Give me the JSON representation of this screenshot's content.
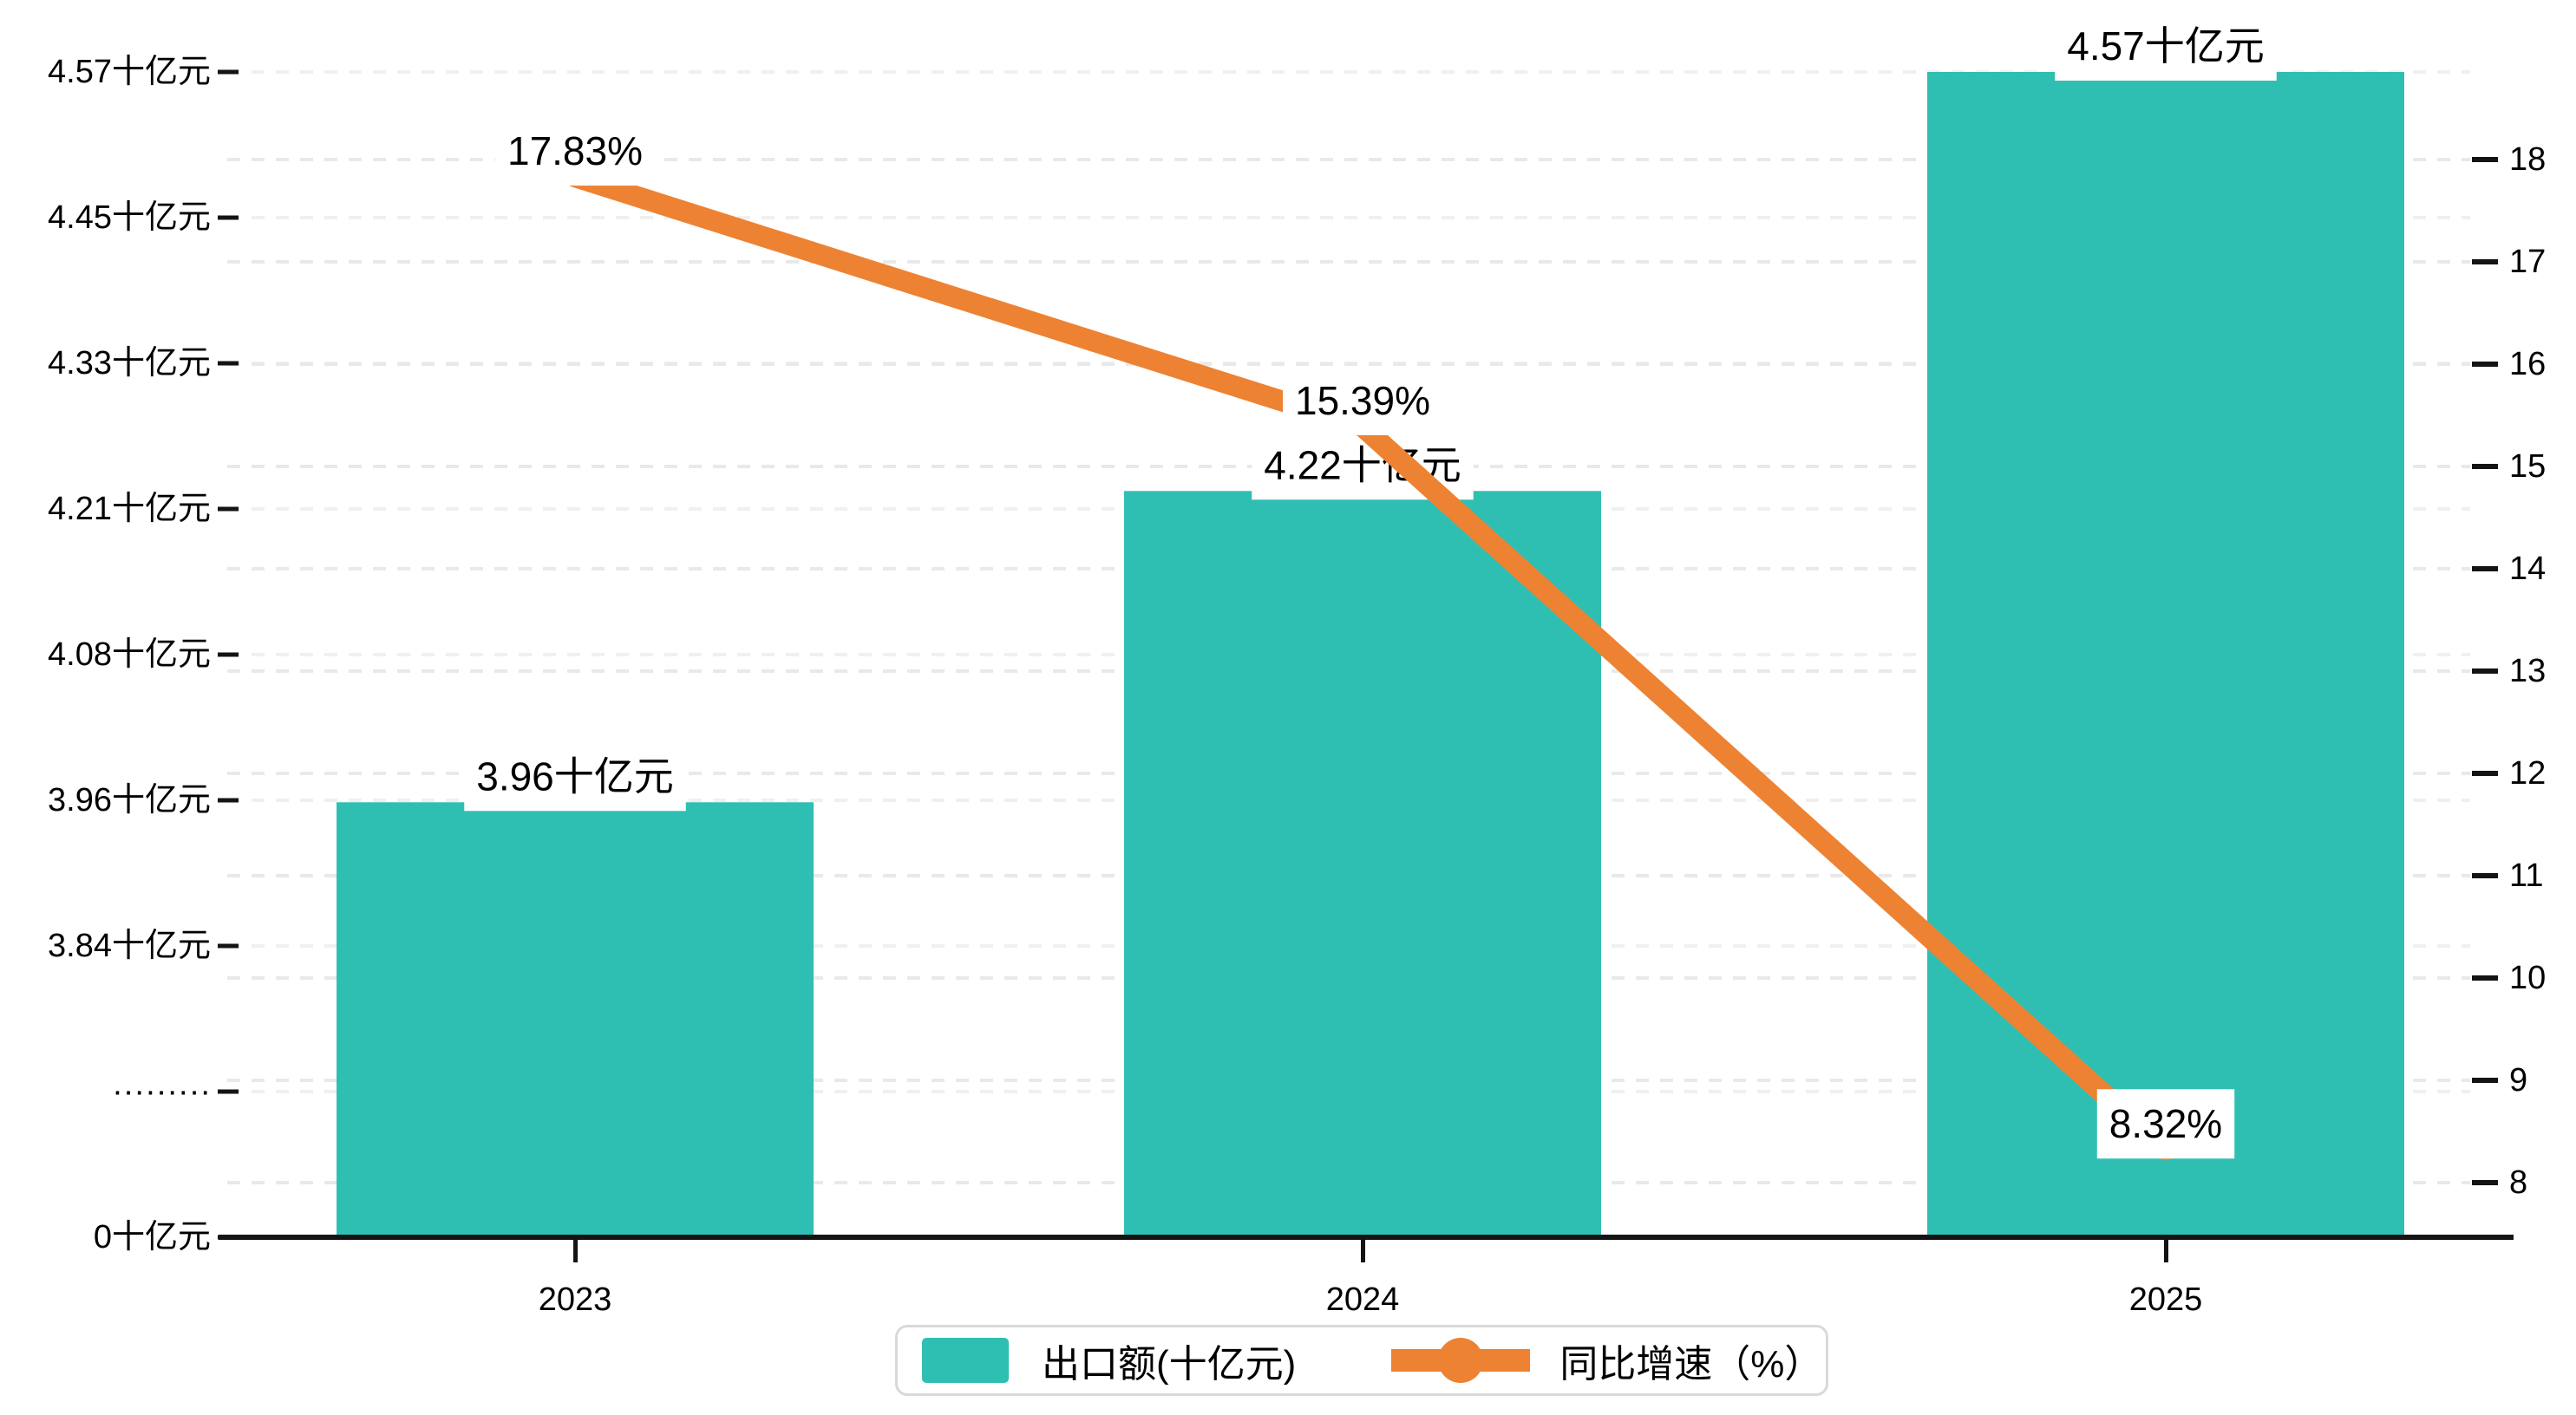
{
  "chart_data": {
    "type": "bar",
    "subtype": "combo-bar-line-dual-axis",
    "categories": [
      "2023",
      "2024",
      "2025"
    ],
    "series": [
      {
        "name": "出口额(十亿元)",
        "type": "bar",
        "values": [
          3.96,
          4.22,
          4.57
        ],
        "labels": [
          "3.96十亿元",
          "4.22十亿元",
          "4.57十亿元"
        ],
        "color": "#2FBFB2",
        "axis": "left"
      },
      {
        "name": "同比增速（%）",
        "type": "line",
        "values": [
          17.83,
          15.39,
          8.32
        ],
        "labels": [
          "17.83%",
          "15.39%",
          "8.32%"
        ],
        "color": "#ED8233",
        "axis": "right"
      }
    ],
    "left_axis": {
      "tick_labels": [
        "4.57十亿元",
        "4.45十亿元",
        "4.33十亿元",
        "4.21十亿元",
        "4.08十亿元",
        "3.96十亿元",
        "3.84十亿元",
        "·········",
        "0十亿元"
      ],
      "tick_values": [
        4.57,
        4.45,
        4.33,
        4.21,
        4.08,
        3.96,
        3.84,
        null,
        0
      ],
      "broken_axis": true
    },
    "right_axis": {
      "tick_labels": [
        "18",
        "17",
        "16",
        "15",
        "14",
        "13",
        "12",
        "11",
        "10",
        "9",
        "8"
      ],
      "max": 18,
      "min": 8
    },
    "xlabel": "",
    "ylabel": "",
    "title": "",
    "grid": true,
    "gridline_color": "#ececec",
    "axis_line_color": "#141414",
    "legend_position": "bottom"
  },
  "legend": {
    "items": [
      {
        "label": "出口额(十亿元)",
        "color": "#2FBFB2",
        "marker": "rect"
      },
      {
        "label": "同比增速（%）",
        "color": "#ED8233",
        "marker": "line-dot"
      }
    ]
  }
}
